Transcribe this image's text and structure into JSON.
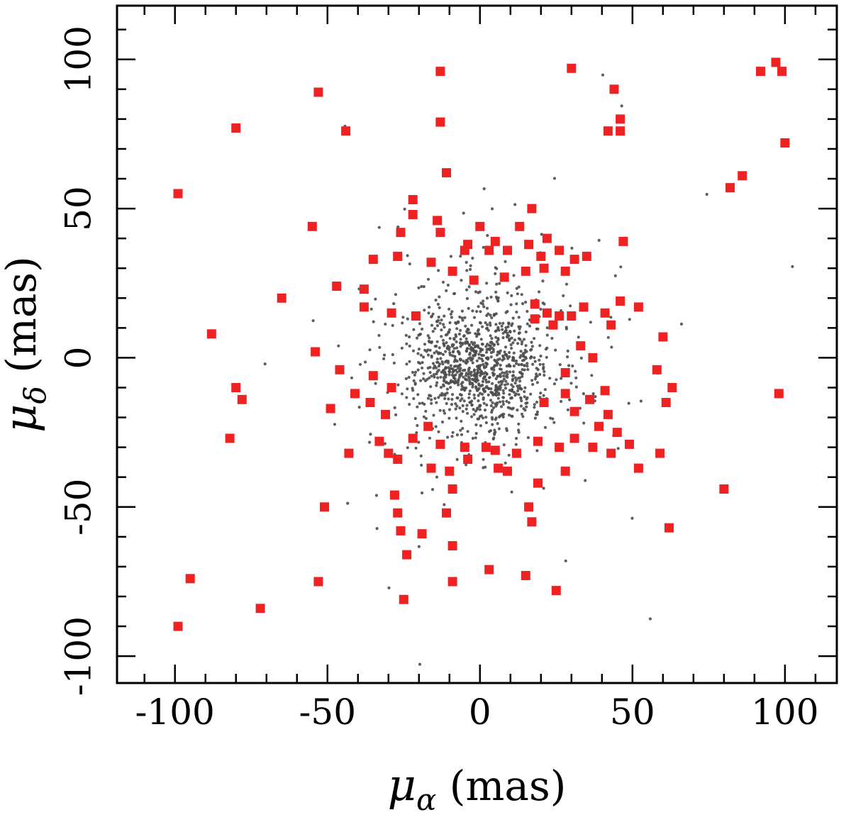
{
  "figure": {
    "background": "#ffffff",
    "frame_color": "#000000"
  },
  "chart_data": {
    "type": "scatter",
    "title": "",
    "xlabel": {
      "symbol": "μ",
      "subscript": "α",
      "unit": "(mas)"
    },
    "ylabel": {
      "symbol": "μ",
      "subscript": "δ",
      "unit": "(mas)"
    },
    "xlim": [
      -119,
      117
    ],
    "ylim": [
      -109,
      118
    ],
    "x_ticks": {
      "values": [
        -100,
        -50,
        0,
        50,
        100
      ],
      "labels": [
        "-100",
        "-50",
        "0",
        "50",
        "100"
      ]
    },
    "y_ticks": {
      "values": [
        -100,
        -50,
        0,
        50,
        100
      ],
      "labels": [
        "-100",
        "-50",
        "0",
        "50",
        "100"
      ]
    },
    "minor_tick_step": 10,
    "grid": false,
    "legend": "none",
    "series": [
      {
        "name": "field-stars-gray-dots",
        "marker": "dot",
        "color": "#4d4d4d",
        "size": 2.1,
        "approx_distribution": {
          "seed": 7,
          "components": [
            {
              "count": 950,
              "sigma": 11,
              "cx": 0,
              "cy": -2
            },
            {
              "count": 170,
              "sigma": 22,
              "cx": 0,
              "cy": -2
            },
            {
              "count": 45,
              "sigma": 42,
              "cx": 0,
              "cy": 0
            }
          ]
        }
      },
      {
        "name": "highlighted-red-squares",
        "marker": "square",
        "color": "#ee2222",
        "size": 13,
        "points": [
          [
            97,
            99
          ],
          [
            99,
            96
          ],
          [
            92,
            96
          ],
          [
            30,
            97
          ],
          [
            -13,
            96
          ],
          [
            44,
            90
          ],
          [
            -53,
            89
          ],
          [
            46,
            80
          ],
          [
            42,
            76
          ],
          [
            46,
            76
          ],
          [
            100,
            72
          ],
          [
            -80,
            77
          ],
          [
            -44,
            76
          ],
          [
            -13,
            79
          ],
          [
            86,
            61
          ],
          [
            82,
            57
          ],
          [
            -99,
            55
          ],
          [
            -11,
            62
          ],
          [
            -22,
            53
          ],
          [
            17,
            50
          ],
          [
            -22,
            48
          ],
          [
            -14,
            46
          ],
          [
            0,
            44
          ],
          [
            -55,
            44
          ],
          [
            13,
            44
          ],
          [
            -26,
            42
          ],
          [
            -13,
            42
          ],
          [
            -4,
            38
          ],
          [
            5,
            39
          ],
          [
            22,
            40
          ],
          [
            47,
            39
          ],
          [
            -5,
            36
          ],
          [
            3,
            36
          ],
          [
            9,
            36
          ],
          [
            16,
            38
          ],
          [
            20,
            34
          ],
          [
            26,
            36
          ],
          [
            35,
            34
          ],
          [
            -27,
            34
          ],
          [
            -35,
            33
          ],
          [
            -16,
            32
          ],
          [
            -9,
            29
          ],
          [
            -2,
            26
          ],
          [
            8,
            27
          ],
          [
            15,
            29
          ],
          [
            21,
            30
          ],
          [
            28,
            29
          ],
          [
            31,
            33
          ],
          [
            -47,
            24
          ],
          [
            -38,
            23
          ],
          [
            -65,
            20
          ],
          [
            -38,
            17
          ],
          [
            -29,
            15
          ],
          [
            -21,
            14
          ],
          [
            18,
            18
          ],
          [
            22,
            15
          ],
          [
            26,
            14
          ],
          [
            30,
            14
          ],
          [
            34,
            17
          ],
          [
            41,
            15
          ],
          [
            46,
            19
          ],
          [
            52,
            17
          ],
          [
            43,
            11
          ],
          [
            24,
            11
          ],
          [
            18,
            13
          ],
          [
            60,
            7
          ],
          [
            -88,
            8
          ],
          [
            -54,
            2
          ],
          [
            -46,
            -4
          ],
          [
            -35,
            -6
          ],
          [
            -29,
            -10
          ],
          [
            -41,
            -12
          ],
          [
            -80,
            -10
          ],
          [
            -78,
            -14
          ],
          [
            -49,
            -17
          ],
          [
            -36,
            -15
          ],
          [
            -31,
            -19
          ],
          [
            33,
            4
          ],
          [
            37,
            0
          ],
          [
            28,
            -5
          ],
          [
            58,
            -4
          ],
          [
            63,
            -10
          ],
          [
            98,
            -12
          ],
          [
            41,
            -11
          ],
          [
            28,
            -12
          ],
          [
            21,
            -15
          ],
          [
            61,
            -15
          ],
          [
            36,
            -14
          ],
          [
            42,
            -19
          ],
          [
            45,
            -25
          ],
          [
            39,
            -23
          ],
          [
            31,
            -18
          ],
          [
            -17,
            -23
          ],
          [
            -22,
            -27
          ],
          [
            -13,
            -29
          ],
          [
            -5,
            -30
          ],
          [
            2,
            -30
          ],
          [
            5,
            -31
          ],
          [
            12,
            -32
          ],
          [
            19,
            -28
          ],
          [
            26,
            -30
          ],
          [
            31,
            -27
          ],
          [
            37,
            -30
          ],
          [
            43,
            -32
          ],
          [
            49,
            -29
          ],
          [
            -33,
            -28
          ],
          [
            -30,
            -32
          ],
          [
            -27,
            -34
          ],
          [
            -43,
            -32
          ],
          [
            -82,
            -27
          ],
          [
            -16,
            -37
          ],
          [
            -10,
            -38
          ],
          [
            6,
            -37
          ],
          [
            9,
            -38
          ],
          [
            19,
            -42
          ],
          [
            28,
            -38
          ],
          [
            52,
            -37
          ],
          [
            59,
            -32
          ],
          [
            80,
            -44
          ],
          [
            62,
            -57
          ],
          [
            -51,
            -50
          ],
          [
            -28,
            -46
          ],
          [
            -27,
            -52
          ],
          [
            -11,
            -52
          ],
          [
            16,
            -50
          ],
          [
            17,
            -55
          ],
          [
            -26,
            -58
          ],
          [
            -19,
            -59
          ],
          [
            -9,
            -63
          ],
          [
            -24,
            -66
          ],
          [
            3,
            -71
          ],
          [
            15,
            -73
          ],
          [
            -9,
            -75
          ],
          [
            -53,
            -75
          ],
          [
            -95,
            -74
          ],
          [
            25,
            -78
          ],
          [
            -25,
            -81
          ],
          [
            -72,
            -84
          ],
          [
            -99,
            -90
          ],
          [
            -9,
            -44
          ],
          [
            -4,
            -34
          ]
        ]
      }
    ]
  }
}
